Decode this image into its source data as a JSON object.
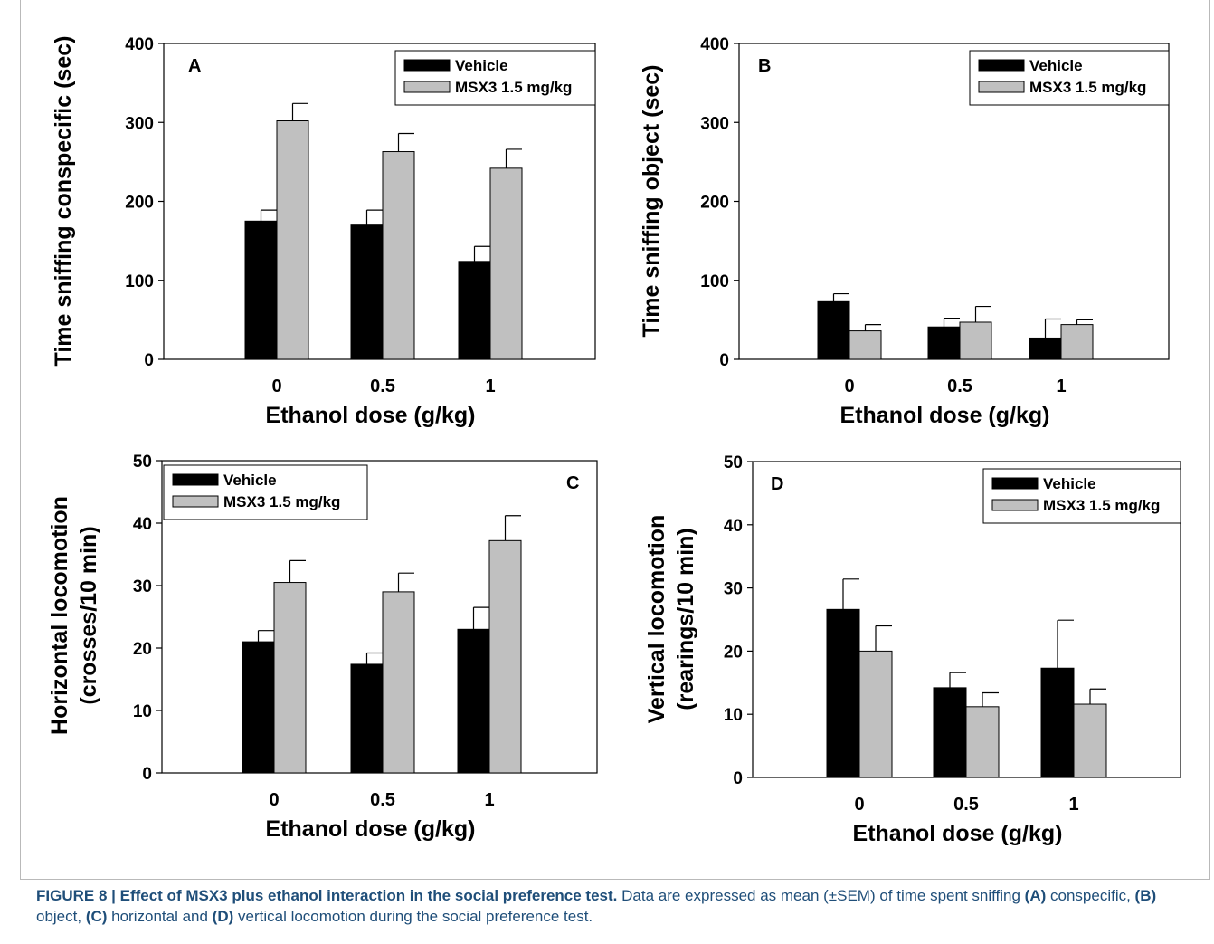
{
  "colors": {
    "vehicle": "#000000",
    "msx3": "#c0c0c0",
    "caption_text": "#1f4e79"
  },
  "chart_data": [
    {
      "type": "bar",
      "panel": "A",
      "xlabel": "Ethanol  dose (g/kg)",
      "ylabel": "Time sniffing conspecific (sec)",
      "ylim": [
        0,
        400
      ],
      "yticks": [
        "0",
        "100",
        "200",
        "300",
        "400"
      ],
      "categories": [
        "0",
        "0.5",
        "1"
      ],
      "legend_position": "top-right",
      "series": [
        {
          "name": "Vehicle",
          "values": [
            175,
            170,
            124
          ],
          "errors": [
            14,
            19,
            19
          ]
        },
        {
          "name": "MSX3 1.5 mg/kg",
          "values": [
            302,
            263,
            242
          ],
          "errors": [
            22,
            23,
            24
          ]
        }
      ]
    },
    {
      "type": "bar",
      "panel": "B",
      "xlabel": "Ethanol  dose (g/kg)",
      "ylabel": "Time sniffing object (sec)",
      "ylim": [
        0,
        400
      ],
      "yticks": [
        "0",
        "100",
        "200",
        "300",
        "400"
      ],
      "categories": [
        "0",
        "0.5",
        "1"
      ],
      "legend_position": "top-right",
      "series": [
        {
          "name": "Vehicle",
          "values": [
            73,
            41,
            27
          ],
          "errors": [
            10,
            11,
            24
          ]
        },
        {
          "name": "MSX3 1.5 mg/kg",
          "values": [
            36,
            47,
            44
          ],
          "errors": [
            8,
            20,
            6
          ]
        }
      ]
    },
    {
      "type": "bar",
      "panel": "C",
      "xlabel": "Ethanol  dose (g/kg)",
      "ylabel": [
        "Horizontal locomotion",
        "(crosses/10 min)"
      ],
      "ylim": [
        0,
        50
      ],
      "yticks": [
        "0",
        "10",
        "20",
        "30",
        "40",
        "50"
      ],
      "categories": [
        "0",
        "0.5",
        "1"
      ],
      "legend_position": "top-left",
      "series": [
        {
          "name": "Vehicle",
          "values": [
            21,
            17.4,
            23
          ],
          "errors": [
            1.8,
            1.8,
            3.5
          ]
        },
        {
          "name": "MSX3 1.5 mg/kg",
          "values": [
            30.5,
            29,
            37.2
          ],
          "errors": [
            3.5,
            3,
            4
          ]
        }
      ]
    },
    {
      "type": "bar",
      "panel": "D",
      "xlabel": "Ethanol  dose (g/kg)",
      "ylabel": [
        "Vertical locomotion",
        "(rearings/10 min)"
      ],
      "ylim": [
        0,
        50
      ],
      "yticks": [
        "0",
        "10",
        "20",
        "30",
        "40",
        "50"
      ],
      "categories": [
        "0",
        "0.5",
        "1"
      ],
      "legend_position": "top-right",
      "series": [
        {
          "name": "Vehicle",
          "values": [
            26.6,
            14.2,
            17.3
          ],
          "errors": [
            4.8,
            2.4,
            7.6
          ]
        },
        {
          "name": "MSX3 1.5 mg/kg",
          "values": [
            20,
            11.2,
            11.6
          ],
          "errors": [
            4,
            2.2,
            2.4
          ]
        }
      ]
    }
  ],
  "caption": {
    "label": "FIGURE 8 | Effect of MSX3 plus ethanol interaction in the social preference test.",
    "text_1": " Data are expressed as mean (±SEM) of time spent sniffing ",
    "ref_a": "(A)",
    "text_2": " conspecific, ",
    "ref_b": "(B)",
    "text_3": " object, ",
    "ref_c": "(C)",
    "text_4": " horizontal and ",
    "ref_d": "(D)",
    "text_5": " vertical locomotion during the social preference test."
  }
}
